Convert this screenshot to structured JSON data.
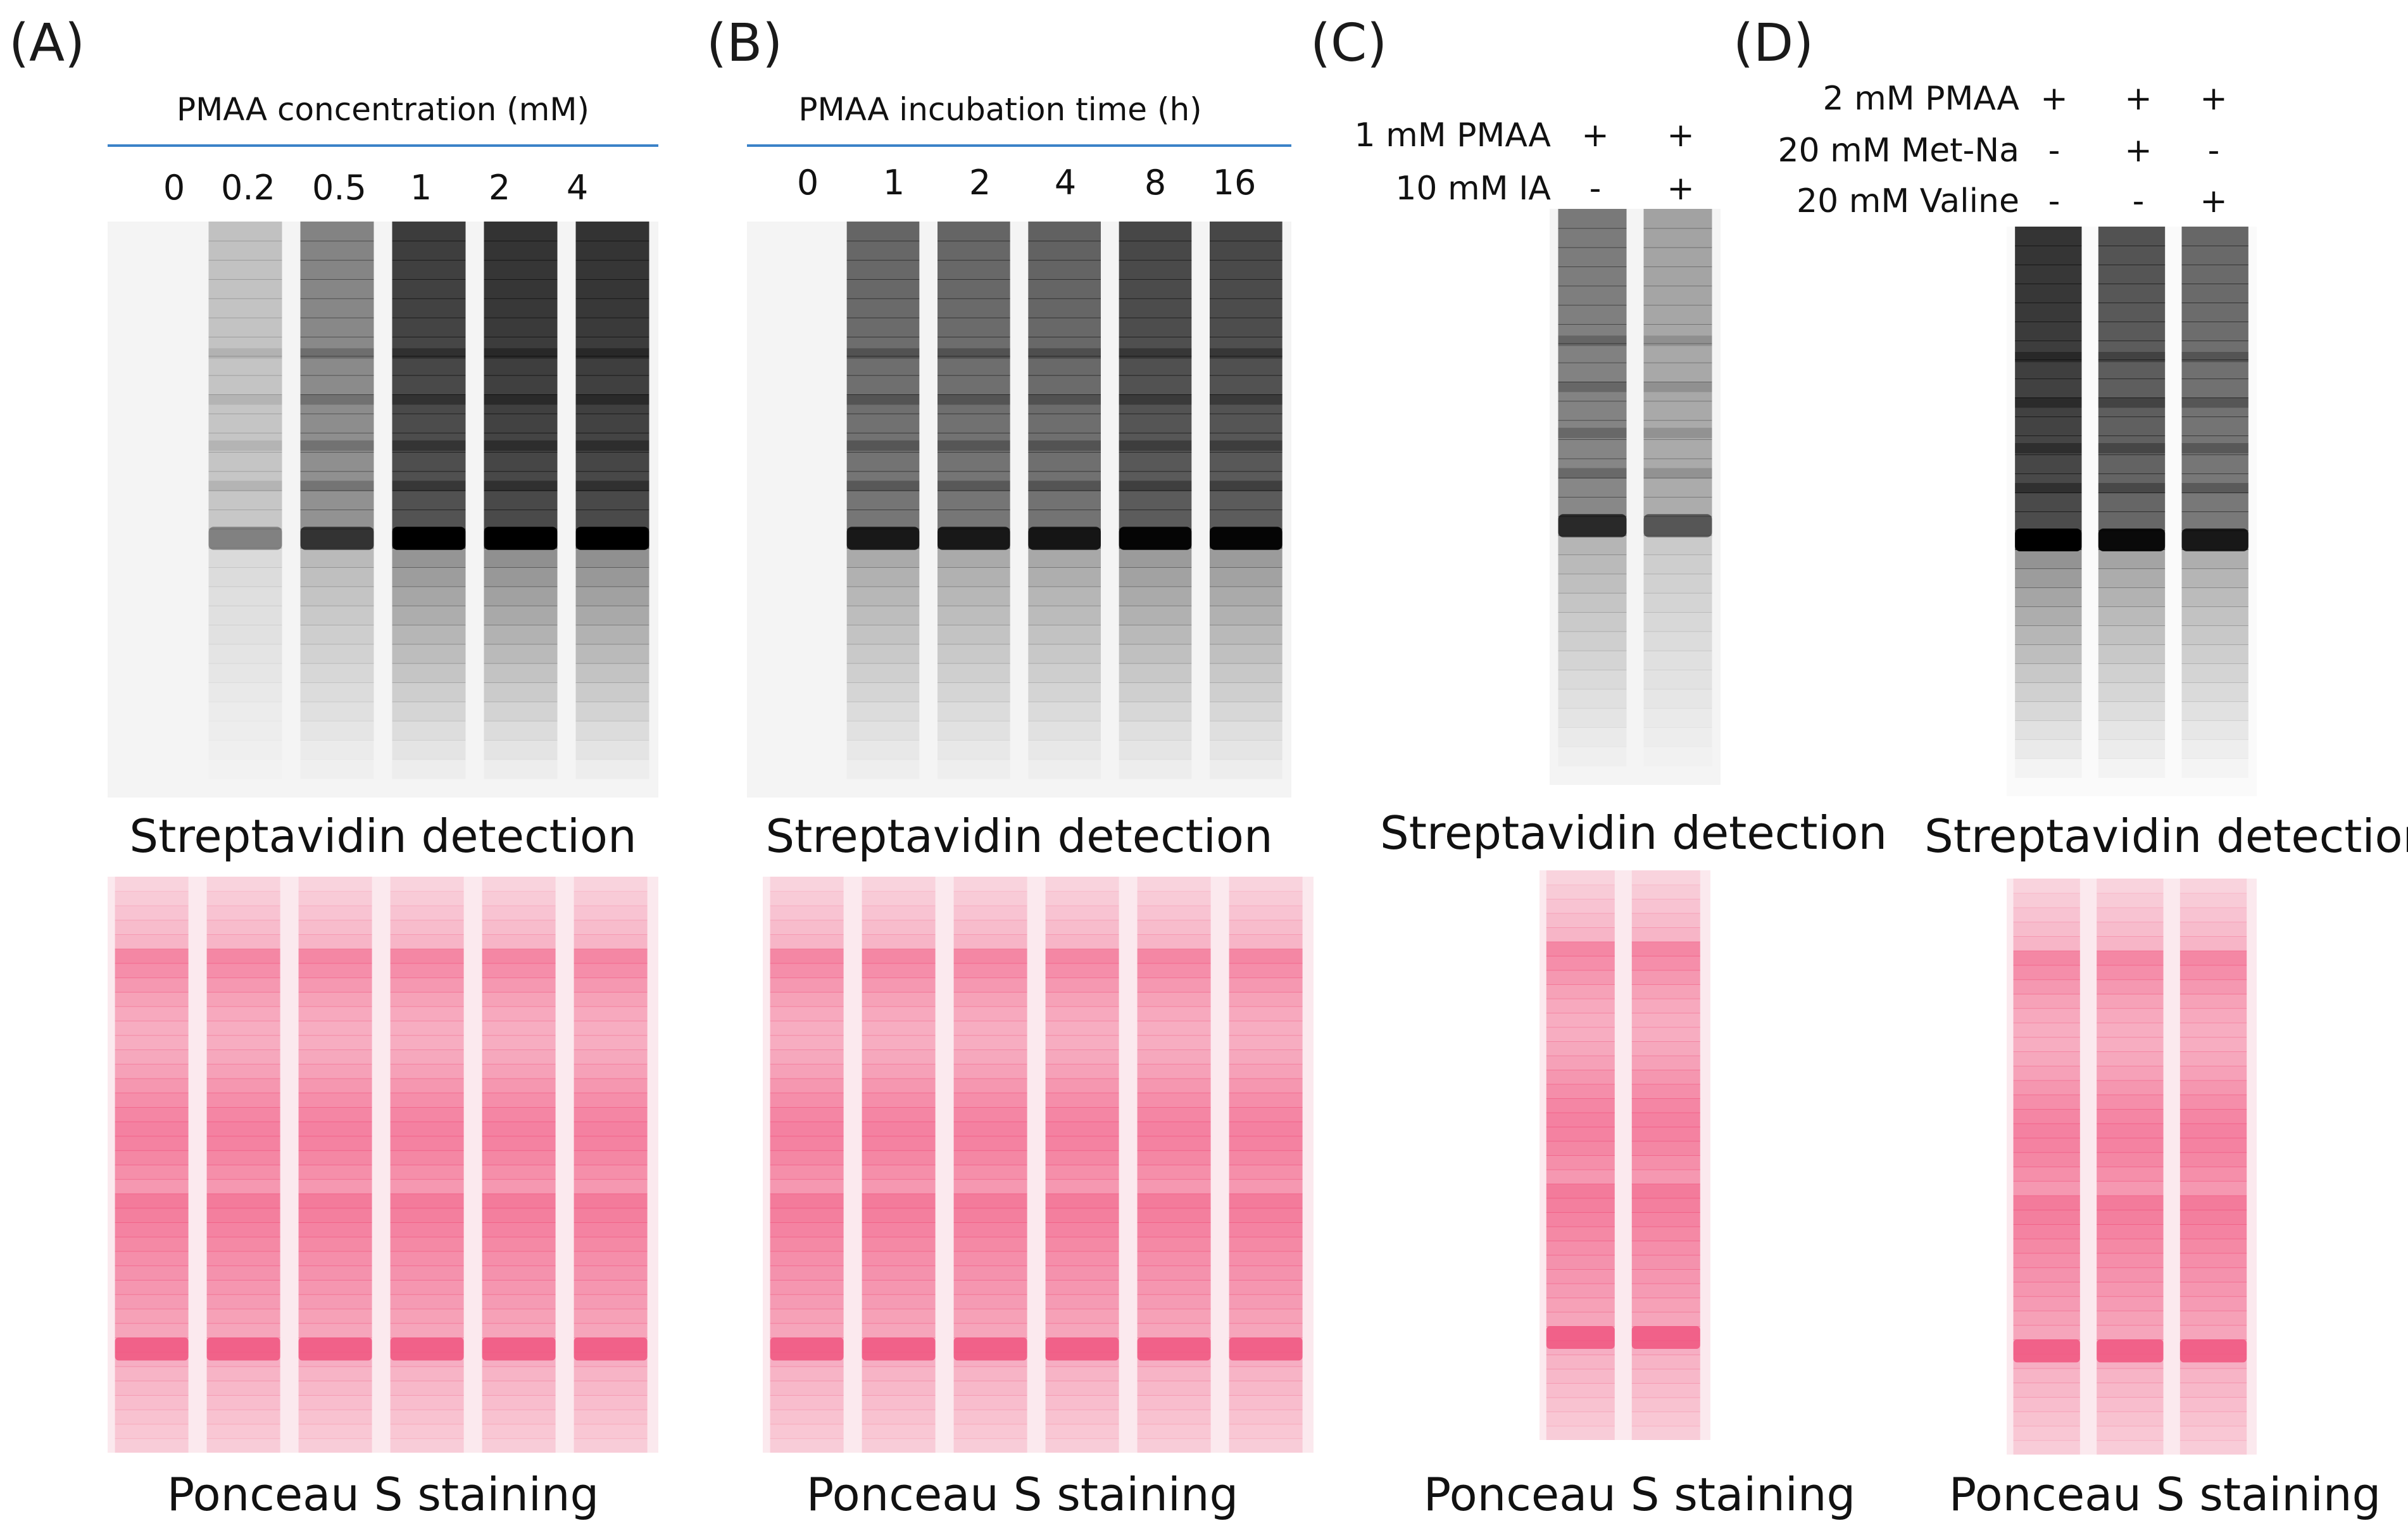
{
  "panels": {
    "A": {
      "letter": "(A)",
      "axis_title": "PMAA concentration (mM)",
      "lanes": [
        "0",
        "0.2",
        "0.5",
        "1",
        "2",
        "4"
      ],
      "streptavidin_caption": "Streptavidin detection",
      "ponceau_caption": "Ponceau S staining"
    },
    "B": {
      "letter": "(B)",
      "axis_title": "PMAA incubation time (h)",
      "lanes": [
        "0",
        "1",
        "2",
        "4",
        "8",
        "16"
      ],
      "streptavidin_caption": "Streptavidin detection",
      "ponceau_caption": "Ponceau S staining"
    },
    "C": {
      "letter": "(C)",
      "conditions": [
        {
          "label": "1 mM PMAA",
          "signs": [
            "+",
            "+"
          ]
        },
        {
          "label": "10 mM IA",
          "signs": [
            "-",
            "+"
          ]
        }
      ],
      "streptavidin_caption": "Streptavidin detection",
      "ponceau_caption": "Ponceau S staining"
    },
    "D": {
      "letter": "(D)",
      "conditions": [
        {
          "label": "2 mM PMAA",
          "signs": [
            "+",
            "+",
            "+"
          ]
        },
        {
          "label": "20 mM Met-Na",
          "signs": [
            "-",
            "+",
            "-"
          ]
        },
        {
          "label": "20 mM Valine",
          "signs": [
            "-",
            "-",
            "+"
          ]
        }
      ],
      "streptavidin_caption": "Streptavidin detection",
      "ponceau_caption": "Ponceau S staining"
    }
  },
  "colors": {
    "axis_rule": "#3b82c8",
    "ponceau_stain": "#f0557f",
    "streptavidin_signal": "#111111"
  },
  "signal_levels": {
    "A": [
      0.0,
      0.25,
      0.55,
      0.9,
      0.95,
      0.95
    ],
    "B": [
      0.0,
      0.7,
      0.7,
      0.72,
      0.85,
      0.85
    ],
    "C": [
      0.6,
      0.4
    ],
    "D": [
      0.95,
      0.8,
      0.7
    ]
  }
}
